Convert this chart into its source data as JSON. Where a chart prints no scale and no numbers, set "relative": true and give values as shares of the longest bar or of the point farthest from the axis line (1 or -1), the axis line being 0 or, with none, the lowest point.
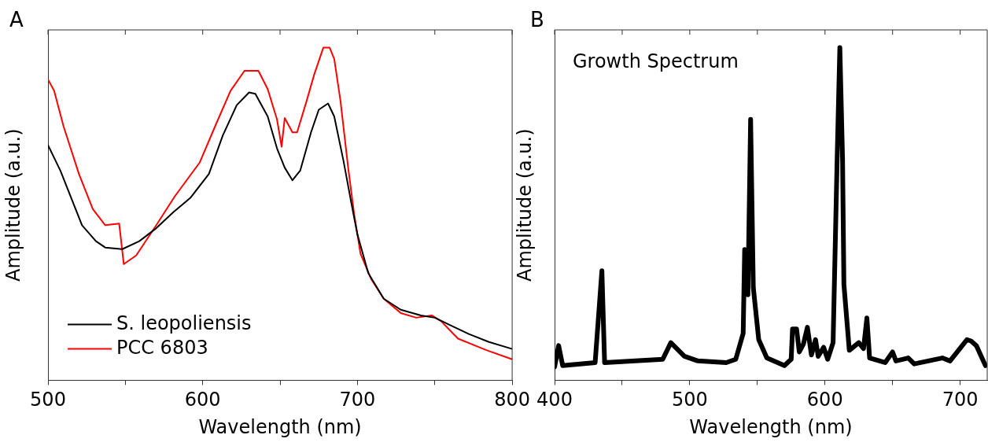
{
  "chart_data": [
    {
      "type": "line",
      "relative": true,
      "xlabel": "Wavelength (nm)",
      "ylabel": "Amplitude (a.u.)",
      "annotations": [
        "A"
      ],
      "legend": "bottom left",
      "marker": "none",
      "line_style": "solid",
      "xlim": [
        500,
        800
      ],
      "xticks": [
        500,
        {
          "value": 550,
          "label": null
        },
        600,
        {
          "value": 650,
          "label": null
        },
        700,
        {
          "value": 750,
          "label": null
        },
        800
      ],
      "series": [
        {
          "name": "S. leopoliensis",
          "color": "#000000",
          "x": [
            500,
            508,
            522,
            531,
            537,
            548,
            559,
            570,
            581,
            592,
            604,
            613,
            622,
            630,
            634,
            642,
            648,
            653,
            658,
            663,
            670,
            675,
            681,
            685,
            691,
            696,
            700,
            707,
            717,
            728,
            741,
            750,
            761,
            772,
            785,
            800
          ],
          "values": [
            0.707,
            0.63,
            0.466,
            0.418,
            0.399,
            0.394,
            0.418,
            0.457,
            0.505,
            0.548,
            0.62,
            0.736,
            0.827,
            0.865,
            0.861,
            0.793,
            0.697,
            0.639,
            0.601,
            0.63,
            0.745,
            0.813,
            0.832,
            0.793,
            0.659,
            0.534,
            0.438,
            0.322,
            0.245,
            0.212,
            0.195,
            0.188,
            0.163,
            0.139,
            0.115,
            0.094
          ]
        },
        {
          "name": "PCC 6803",
          "color": "#ff0000",
          "x": [
            500,
            504,
            510,
            520,
            529,
            537,
            546,
            549,
            557,
            570,
            582,
            598,
            609,
            618,
            627,
            636,
            642,
            648,
            651,
            653,
            658,
            661,
            667,
            672,
            678,
            682,
            685,
            689,
            694,
            698,
            702,
            709,
            717,
            728,
            738,
            748,
            754,
            765,
            783,
            800
          ],
          "values": [
            0.904,
            0.87,
            0.764,
            0.62,
            0.514,
            0.466,
            0.471,
            0.349,
            0.375,
            0.466,
            0.553,
            0.654,
            0.774,
            0.87,
            0.93,
            0.93,
            0.875,
            0.784,
            0.702,
            0.788,
            0.745,
            0.745,
            0.837,
            0.918,
            1.0,
            1.0,
            0.966,
            0.841,
            0.639,
            0.495,
            0.38,
            0.303,
            0.245,
            0.202,
            0.188,
            0.195,
            0.178,
            0.125,
            0.091,
            0.063
          ]
        }
      ]
    },
    {
      "type": "line",
      "relative": true,
      "xlabel": "Wavelength (nm)",
      "ylabel": "Amplitude (a.u.)",
      "annotations": [
        "B",
        "Growth Spectrum"
      ],
      "marker": "none",
      "line_style": "solid",
      "xlim": [
        400,
        720
      ],
      "xticks": [
        400,
        {
          "value": 450,
          "label": null
        },
        500,
        {
          "value": 550,
          "label": null
        },
        600,
        {
          "value": 650,
          "label": null
        },
        700
      ],
      "series": [
        {
          "color": "#000000",
          "x": [
            400,
            403,
            406,
            430,
            435,
            437,
            480,
            486,
            496,
            506,
            527,
            534,
            539.5,
            540.6,
            543,
            545,
            547,
            551,
            557,
            570,
            575,
            576,
            579,
            581,
            584,
            587,
            590,
            593,
            595,
            599,
            602,
            606,
            609,
            611,
            613,
            614,
            618,
            625,
            628.5,
            631,
            633,
            644.5,
            650,
            652.5,
            661.6,
            666,
            686.8,
            692.5,
            705,
            708,
            712,
            718.7
          ],
          "values": [
            0.04,
            0.104,
            0.044,
            0.053,
            0.329,
            0.053,
            0.063,
            0.113,
            0.072,
            0.058,
            0.053,
            0.063,
            0.141,
            0.393,
            0.257,
            0.784,
            0.278,
            0.122,
            0.067,
            0.044,
            0.063,
            0.154,
            0.154,
            0.085,
            0.108,
            0.159,
            0.076,
            0.122,
            0.072,
            0.099,
            0.063,
            0.113,
            0.665,
            1.0,
            0.665,
            0.288,
            0.09,
            0.113,
            0.095,
            0.187,
            0.067,
            0.053,
            0.085,
            0.058,
            0.067,
            0.049,
            0.067,
            0.058,
            0.122,
            0.118,
            0.104,
            0.044
          ]
        }
      ]
    }
  ]
}
